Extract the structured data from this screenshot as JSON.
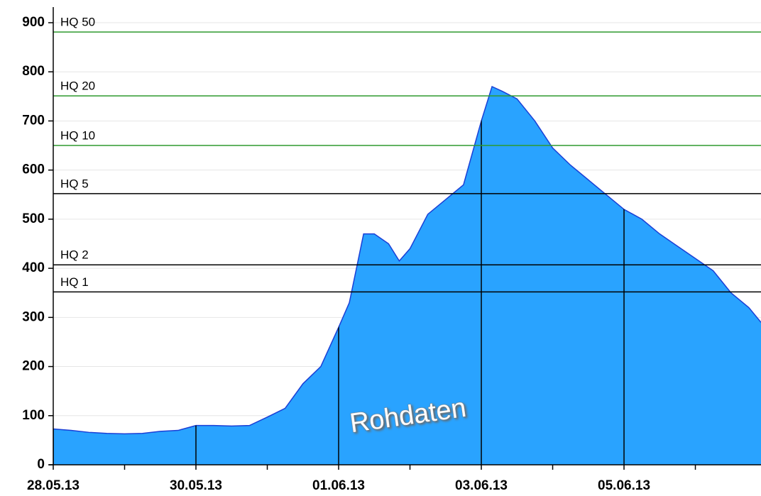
{
  "chart_data": {
    "type": "area",
    "annotation": "Rohdaten",
    "x": [
      0,
      0.25,
      0.5,
      0.75,
      1,
      1.25,
      1.5,
      1.75,
      2,
      2.25,
      2.5,
      2.75,
      3,
      3.25,
      3.5,
      3.75,
      4,
      4.15,
      4.25,
      4.35,
      4.5,
      4.7,
      4.85,
      5,
      5.25,
      5.5,
      5.75,
      6,
      6.15,
      6.3,
      6.5,
      6.75,
      7,
      7.25,
      7.5,
      7.75,
      8,
      8.25,
      8.5,
      8.75,
      9,
      9.25,
      9.5,
      9.75,
      9.92
    ],
    "series": [
      {
        "color": "#29a3ff",
        "stroke": "#1a3fd6",
        "values": [
          73,
          70,
          66,
          64,
          63,
          64,
          68,
          70,
          80,
          80,
          79,
          80,
          97,
          115,
          165,
          200,
          280,
          330,
          400,
          470,
          470,
          450,
          415,
          440,
          510,
          540,
          570,
          700,
          770,
          760,
          745,
          700,
          645,
          610,
          580,
          550,
          520,
          500,
          470,
          445,
          420,
          395,
          350,
          320,
          290
        ]
      }
    ],
    "thresholds": [
      {
        "label": "HQ 50",
        "value": 881,
        "color": "#2e9a2e"
      },
      {
        "label": "HQ 20",
        "value": 751,
        "color": "#2e9a2e"
      },
      {
        "label": "HQ 10",
        "value": 650,
        "color": "#2e9a2e"
      },
      {
        "label": "HQ 5",
        "value": 552,
        "color": "#000000"
      },
      {
        "label": "HQ 2",
        "value": 407,
        "color": "#000000"
      },
      {
        "label": "HQ 1",
        "value": 352,
        "color": "#000000"
      }
    ],
    "xlim": [
      0,
      9.92
    ],
    "xticks": [
      {
        "value": 0,
        "label": "28.05.13"
      },
      {
        "value": 2,
        "label": "30.05.13"
      },
      {
        "value": 4,
        "label": "01.06.13"
      },
      {
        "value": 6,
        "label": "03.06.13"
      },
      {
        "value": 8,
        "label": "05.06.13"
      }
    ],
    "xminor": [
      1,
      3,
      5,
      7,
      9
    ],
    "ylim": [
      0,
      900
    ],
    "yticks": [
      0,
      100,
      200,
      300,
      400,
      500,
      600,
      700,
      800,
      900
    ],
    "grid": true
  }
}
